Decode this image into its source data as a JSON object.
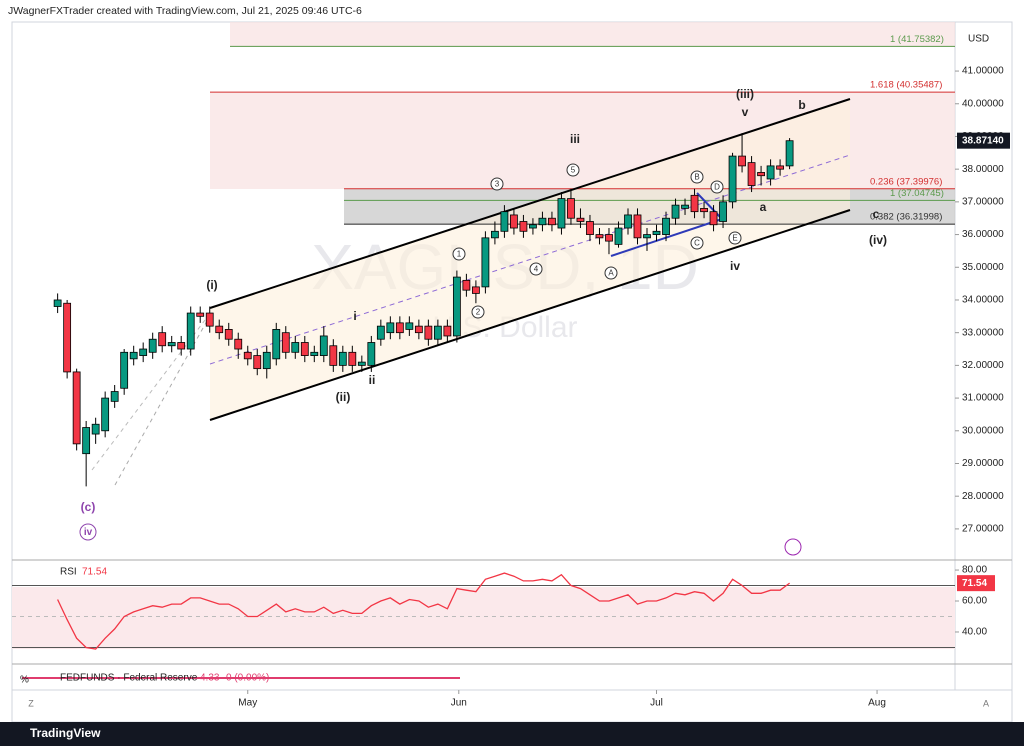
{
  "header": {
    "title": "JWagnerFXTrader created with TradingView.com, Jul 21, 2025 09:46 UTC-6",
    "logo": "TradingView"
  },
  "chart_data": [
    {
      "type": "candlestick",
      "title": "XAGUSD, 1D",
      "subtitle": "U.S. Dollar",
      "currency": "USD",
      "open": [
        33.8,
        33.9,
        31.8,
        29.3,
        29.9,
        30.0,
        30.9,
        31.3,
        32.2,
        32.3,
        32.4,
        33.0,
        32.6,
        32.7,
        32.5,
        33.6,
        33.6,
        33.2,
        33.1,
        32.8,
        32.4,
        32.3,
        31.9,
        32.2,
        33.0,
        32.4,
        32.7,
        32.3,
        32.3,
        32.6,
        32.0,
        32.4,
        32.0,
        32.0,
        32.8,
        33.0,
        33.3,
        33.1,
        33.2,
        33.2,
        32.8,
        33.2,
        32.9,
        34.6,
        34.4,
        34.4,
        35.9,
        36.1,
        36.6,
        36.4,
        36.2,
        36.3,
        36.5,
        36.2,
        37.1,
        36.5,
        36.4,
        36.0,
        36.0,
        35.7,
        36.2,
        36.6,
        35.9,
        36.0,
        36.0,
        36.5,
        36.8,
        37.2,
        36.8,
        36.7,
        36.4,
        37.0,
        38.4,
        38.2,
        37.9,
        37.7,
        38.1,
        38.1
      ],
      "high": [
        34.2,
        34.0,
        31.9,
        30.3,
        30.4,
        31.2,
        31.4,
        32.5,
        32.6,
        32.7,
        33.0,
        33.2,
        32.9,
        32.9,
        33.8,
        33.8,
        33.8,
        33.4,
        33.3,
        33.0,
        32.6,
        32.5,
        32.6,
        33.3,
        33.2,
        32.9,
        32.9,
        32.6,
        33.2,
        32.8,
        32.6,
        32.6,
        32.3,
        32.9,
        33.4,
        33.5,
        33.5,
        33.5,
        33.4,
        33.4,
        33.4,
        33.4,
        34.9,
        34.8,
        34.6,
        36.1,
        36.4,
        36.9,
        36.8,
        36.6,
        36.5,
        36.7,
        36.7,
        37.3,
        37.4,
        36.8,
        36.6,
        36.2,
        36.2,
        36.4,
        36.8,
        36.8,
        36.2,
        36.3,
        36.7,
        37.1,
        37.1,
        37.4,
        37.0,
        36.9,
        37.2,
        38.5,
        39.1,
        38.4,
        38.1,
        38.3,
        38.3,
        38.95
      ],
      "low": [
        33.6,
        31.6,
        29.4,
        28.3,
        29.6,
        29.8,
        30.7,
        31.1,
        32.0,
        32.1,
        32.2,
        32.4,
        32.4,
        32.3,
        32.3,
        33.3,
        33.0,
        32.8,
        32.6,
        32.2,
        32.0,
        31.7,
        31.6,
        32.0,
        32.2,
        32.2,
        32.1,
        32.1,
        32.1,
        31.8,
        31.8,
        31.8,
        31.8,
        31.8,
        32.6,
        32.8,
        32.8,
        32.9,
        32.8,
        32.6,
        32.6,
        32.7,
        32.7,
        34.1,
        33.9,
        34.2,
        35.7,
        35.9,
        36.0,
        35.9,
        36.0,
        36.1,
        36.1,
        36.0,
        36.3,
        36.2,
        35.8,
        35.7,
        35.4,
        35.6,
        36.0,
        35.7,
        35.5,
        35.8,
        35.8,
        36.3,
        36.6,
        36.5,
        36.5,
        36.1,
        36.2,
        36.8,
        37.9,
        37.3,
        37.5,
        37.5,
        37.8,
        38.0
      ],
      "close": [
        34.0,
        31.8,
        29.6,
        30.1,
        30.2,
        31.0,
        31.2,
        32.4,
        32.4,
        32.5,
        32.8,
        32.6,
        32.7,
        32.5,
        33.6,
        33.5,
        33.2,
        33.0,
        32.8,
        32.5,
        32.2,
        31.9,
        32.4,
        33.1,
        32.4,
        32.7,
        32.3,
        32.4,
        32.9,
        32.0,
        32.4,
        32.0,
        32.1,
        32.7,
        33.2,
        33.3,
        33.0,
        33.3,
        33.0,
        32.8,
        33.2,
        32.9,
        34.7,
        34.3,
        34.2,
        35.9,
        36.1,
        36.7,
        36.2,
        36.1,
        36.3,
        36.5,
        36.3,
        37.1,
        36.5,
        36.4,
        36.0,
        35.9,
        35.8,
        36.2,
        36.6,
        35.9,
        36.0,
        36.1,
        36.5,
        36.9,
        36.9,
        36.7,
        36.7,
        36.3,
        37.0,
        38.4,
        38.1,
        37.5,
        37.8,
        38.1,
        38.0,
        38.87
      ],
      "colors": {
        "up": "#089981",
        "down": "#f23645"
      },
      "ylim": [
        26.11,
        42.5
      ],
      "yticks": [
        {
          "value": 27,
          "label": "27.00000"
        },
        {
          "value": 28,
          "label": "28.00000"
        },
        {
          "value": 29,
          "label": "29.00000"
        },
        {
          "value": 30,
          "label": "30.00000"
        },
        {
          "value": 31,
          "label": "31.00000"
        },
        {
          "value": 32,
          "label": "32.00000"
        },
        {
          "value": 33,
          "label": "33.00000"
        },
        {
          "value": 34,
          "label": "34.00000"
        },
        {
          "value": 35,
          "label": "35.00000"
        },
        {
          "value": 36,
          "label": "36.00000"
        },
        {
          "value": 37,
          "label": "37.00000"
        },
        {
          "value": 38,
          "label": "38.00000"
        },
        {
          "value": 39,
          "label": "39.00000"
        },
        {
          "value": 40,
          "label": "40.00000"
        },
        {
          "value": 41,
          "label": "41.00000"
        }
      ],
      "xlim": [
        -4.8,
        94.4
      ],
      "xticks": [
        {
          "value": 20,
          "label": "May"
        },
        {
          "value": 42.2,
          "label": "Jun"
        },
        {
          "value": 63,
          "label": "Jul"
        },
        {
          "value": 86.2,
          "label": "Aug"
        }
      ],
      "last_price": {
        "value": 38.8714,
        "label": "38.87140"
      },
      "fib_levels": [
        {
          "label": "1 (41.75382)",
          "price": 41.75382,
          "color": "#5b9a4c"
        },
        {
          "label": "1.618 (40.35487)",
          "price": 40.35487,
          "color": "#d32f2f"
        },
        {
          "label": "0.236 (37.39976)",
          "price": 37.39976,
          "color": "#d32f2f"
        },
        {
          "label": "1 (37.04745)",
          "price": 37.04745,
          "color": "#5b9a4c"
        },
        {
          "label": "0.382 (36.31998)",
          "price": 36.31998,
          "color": "#333333"
        }
      ],
      "wave_labels": [
        "(i)",
        "(ii)",
        "(iii)",
        "(iv)",
        "(c)",
        "i",
        "ii",
        "iii",
        "iv",
        "v",
        "a",
        "b",
        "c"
      ],
      "circled_labels": [
        "1",
        "2",
        "3",
        "4",
        "5",
        "A",
        "B",
        "C",
        "D",
        "E",
        "iv"
      ]
    },
    {
      "type": "line",
      "title": "RSI",
      "last_value_label": "71.54",
      "color": "#f23645",
      "values": [
        61,
        48,
        36,
        30,
        29,
        36,
        42,
        50,
        53,
        55,
        57,
        56,
        58,
        58,
        62,
        62,
        60,
        58,
        58,
        55,
        50,
        50,
        54,
        58,
        53,
        55,
        53,
        53,
        56,
        52,
        54,
        52,
        52,
        57,
        60,
        62,
        58,
        61,
        60,
        56,
        58,
        55,
        68,
        67,
        66,
        74,
        76,
        78,
        76,
        73,
        73,
        74,
        73,
        77,
        70,
        68,
        64,
        60,
        60,
        62,
        64,
        58,
        60,
        60,
        62,
        65,
        64,
        66,
        65,
        60,
        65,
        74,
        70,
        65,
        65,
        67,
        67,
        71.54
      ],
      "ylim": [
        21.9,
        85.2
      ],
      "yticks": [
        {
          "value": 80,
          "label": "80.00"
        },
        {
          "value": 60,
          "label": "60.00"
        },
        {
          "value": 40,
          "label": "40.00"
        }
      ],
      "levels": [
        70,
        50,
        30
      ]
    }
  ],
  "fedfunds": {
    "title": "FEDFUNDS · Federal Reserve",
    "value": "4.33",
    "change": "0 (0.00%)",
    "unit": "%"
  },
  "axis_buttons": {
    "left": "Z",
    "right": "A"
  }
}
